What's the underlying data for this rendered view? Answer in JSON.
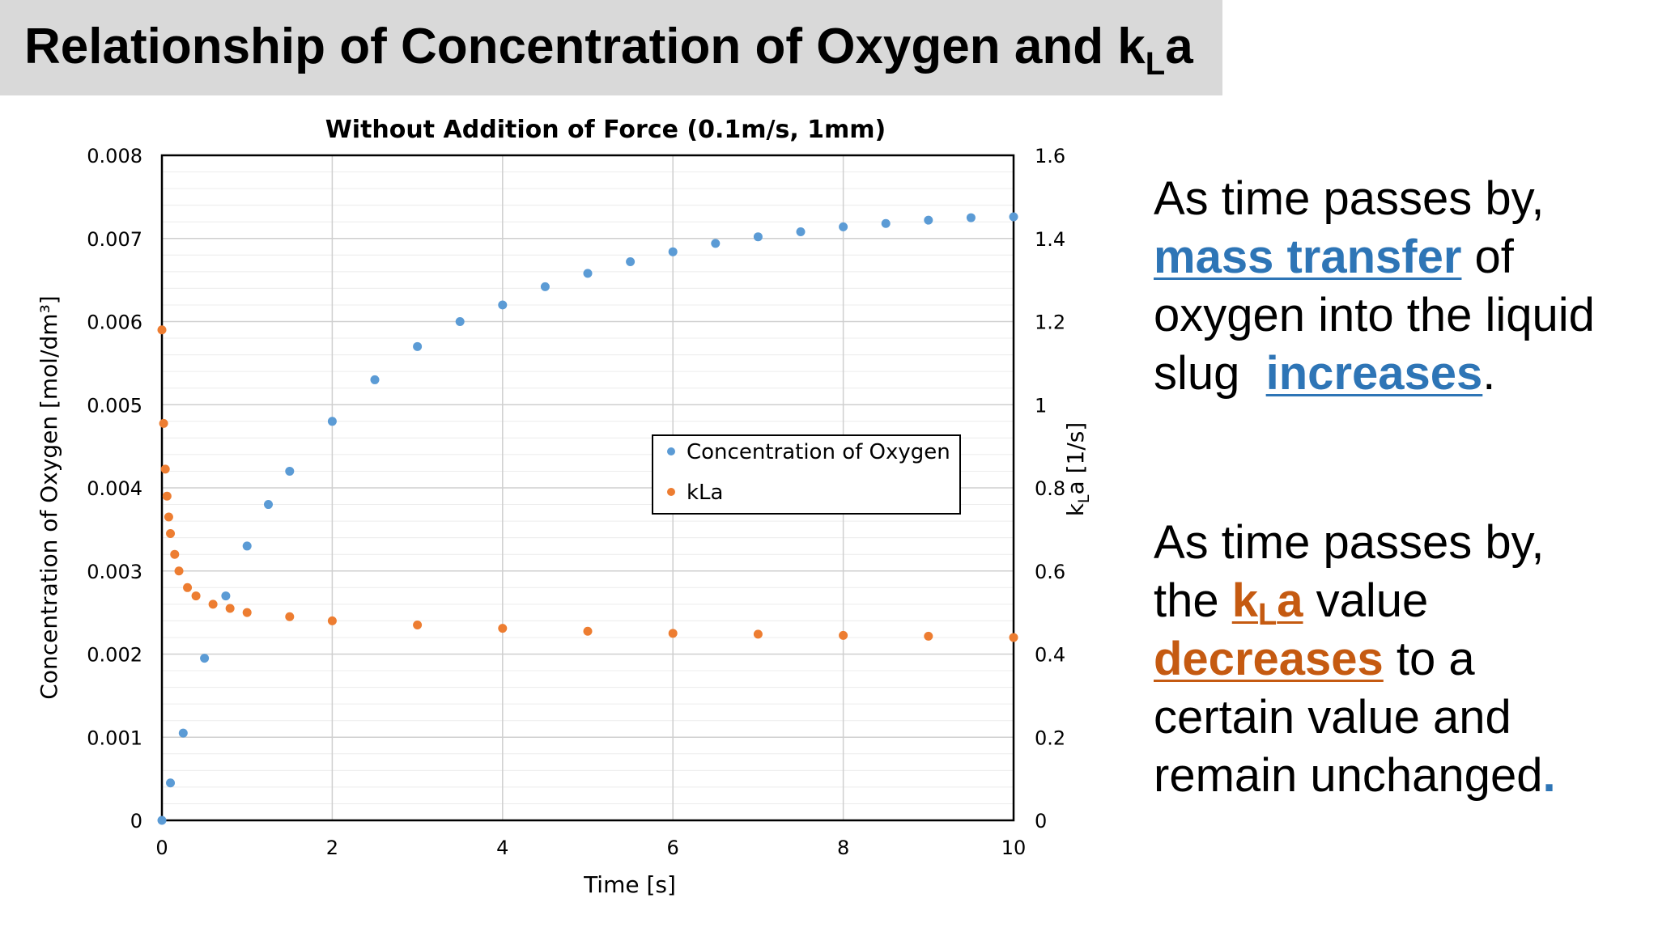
{
  "title": {
    "main": "Relationship of Concentration of Oxygen and k",
    "sub": "L",
    "tail": "a"
  },
  "panel_1": {
    "line1": "As time passes by,",
    "highlight1": "mass transfer",
    "after1": " of",
    "line3": "oxygen into the liquid",
    "before2": "slug  ",
    "highlight2": "increases",
    "after2": "."
  },
  "panel_2": {
    "line1": "As time passes by,",
    "before1": "the ",
    "k": "k",
    "sub": "L",
    "a": "a",
    "after1": " value",
    "highlight2": "decreases",
    "after2": " to a",
    "line4": "certain value and",
    "line5": "remain unchanged",
    "dot": "."
  },
  "colors": {
    "oxygen": "#5b9bd5",
    "kla": "#ed7d31",
    "panel_blue": "#2e75b6",
    "panel_orange": "#c55a11",
    "title_bg": "#d9d9d9"
  },
  "chart_data": {
    "type": "scatter",
    "title": "Without Addition of Force (0.1m/s, 1mm)",
    "xlabel": "Time [s]",
    "ylabel_left": "Concentration of Oxygen [mol/dm³]",
    "ylabel_right_main": "k",
    "ylabel_right_sub": "L",
    "ylabel_right_tail": "a [1/s]",
    "xlim": [
      0,
      10
    ],
    "ylim_left": [
      0,
      0.008
    ],
    "ylim_right": [
      0,
      1.6
    ],
    "x_ticks": [
      "0",
      "2",
      "4",
      "6",
      "8",
      "10"
    ],
    "y_left_ticks": [
      "0",
      "0.001",
      "0.002",
      "0.003",
      "0.004",
      "0.005",
      "0.006",
      "0.007",
      "0.008"
    ],
    "y_right_ticks": [
      "0",
      "0.2",
      "0.4",
      "0.6",
      "0.8",
      "1",
      "1.2",
      "1.4",
      "1.6"
    ],
    "grid": true,
    "legend_position": "center-right",
    "series": [
      {
        "name": "Concentration of Oxygen",
        "axis": "left",
        "x": [
          0,
          0.1,
          0.25,
          0.5,
          0.75,
          1.0,
          1.25,
          1.5,
          2.0,
          2.5,
          3.0,
          3.5,
          4.0,
          4.5,
          5.0,
          5.5,
          6.0,
          6.5,
          7.0,
          7.5,
          8.0,
          8.5,
          9.0,
          9.5,
          10.0
        ],
        "y": [
          0,
          0.00045,
          0.00105,
          0.00195,
          0.0027,
          0.0033,
          0.0038,
          0.0042,
          0.0048,
          0.0053,
          0.0057,
          0.006,
          0.0062,
          0.00642,
          0.00658,
          0.00672,
          0.00684,
          0.00694,
          0.00702,
          0.00708,
          0.00714,
          0.00718,
          0.00722,
          0.00725,
          0.00726
        ]
      },
      {
        "name": "kLa",
        "axis": "right",
        "x": [
          0,
          0.02,
          0.04,
          0.06,
          0.08,
          0.1,
          0.15,
          0.2,
          0.3,
          0.4,
          0.6,
          0.8,
          1.0,
          1.5,
          2.0,
          3.0,
          4.0,
          5.0,
          6.0,
          7.0,
          8.0,
          9.0,
          10.0
        ],
        "y": [
          1.18,
          0.955,
          0.845,
          0.78,
          0.73,
          0.69,
          0.64,
          0.6,
          0.56,
          0.54,
          0.52,
          0.51,
          0.5,
          0.49,
          0.48,
          0.47,
          0.462,
          0.455,
          0.45,
          0.448,
          0.445,
          0.443,
          0.44
        ]
      }
    ]
  }
}
